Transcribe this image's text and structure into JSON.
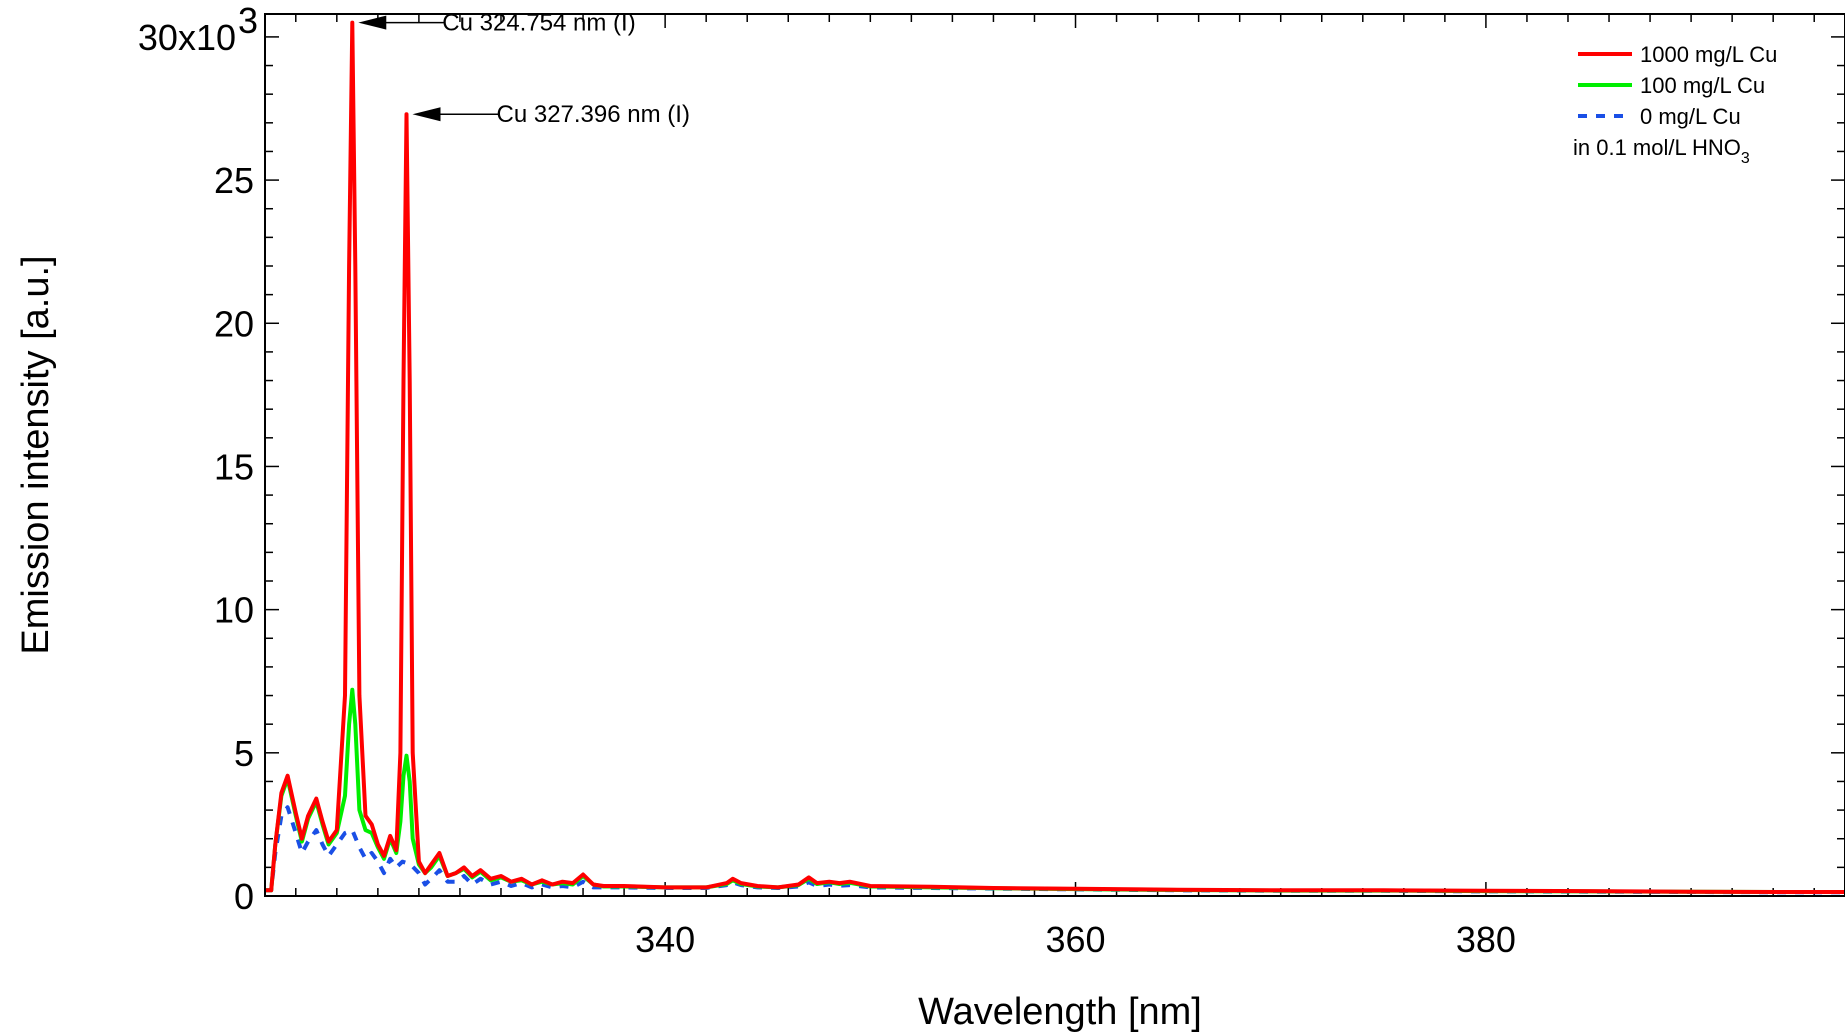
{
  "chart_data": {
    "type": "line",
    "xlabel": "Wavelength [nm]",
    "ylabel": "Emission intensity [a.u.]",
    "xlim": [
      320.5,
      397.5
    ],
    "ylim": [
      0,
      30.8
    ],
    "x_ticks": [
      340,
      360,
      380
    ],
    "x_tick_labels": [
      "340",
      "360",
      "380"
    ],
    "y_ticks": [
      0,
      5,
      10,
      15,
      20,
      25,
      30
    ],
    "y_tick_labels": [
      "0",
      "5",
      "10",
      "15",
      "20",
      "25",
      "30x10"
    ],
    "y_top_exponent": "3",
    "grid": false,
    "legend_position": "top-right",
    "legend_note": {
      "prefix": "in 0.1 mol/L HNO",
      "subscript": "3"
    },
    "annotations": [
      {
        "text": "Cu 324.754 nm (I)",
        "x": 324.754,
        "y": 30.5
      },
      {
        "text": "Cu 327.396 nm (I)",
        "x": 327.396,
        "y": 27.3
      }
    ],
    "series": [
      {
        "name": "1000 mg/L Cu",
        "color": "#ff0000",
        "style": "solid",
        "points": [
          [
            320.5,
            0.2
          ],
          [
            320.8,
            0.2
          ],
          [
            321.0,
            1.8
          ],
          [
            321.3,
            3.6
          ],
          [
            321.6,
            4.2
          ],
          [
            322.0,
            2.9
          ],
          [
            322.3,
            2.0
          ],
          [
            322.6,
            2.8
          ],
          [
            323.0,
            3.4
          ],
          [
            323.3,
            2.6
          ],
          [
            323.6,
            1.9
          ],
          [
            324.0,
            2.3
          ],
          [
            324.4,
            7.0
          ],
          [
            324.6,
            22.0
          ],
          [
            324.754,
            30.5
          ],
          [
            324.9,
            22.0
          ],
          [
            325.1,
            7.0
          ],
          [
            325.4,
            2.8
          ],
          [
            325.7,
            2.5
          ],
          [
            326.0,
            1.8
          ],
          [
            326.3,
            1.4
          ],
          [
            326.6,
            2.1
          ],
          [
            326.9,
            1.6
          ],
          [
            327.1,
            5.0
          ],
          [
            327.25,
            18.0
          ],
          [
            327.396,
            27.3
          ],
          [
            327.55,
            18.0
          ],
          [
            327.7,
            5.0
          ],
          [
            328.0,
            1.2
          ],
          [
            328.3,
            0.8
          ],
          [
            328.6,
            1.1
          ],
          [
            329.0,
            1.5
          ],
          [
            329.4,
            0.7
          ],
          [
            329.8,
            0.8
          ],
          [
            330.2,
            1.0
          ],
          [
            330.6,
            0.7
          ],
          [
            331.0,
            0.9
          ],
          [
            331.5,
            0.6
          ],
          [
            332.0,
            0.7
          ],
          [
            332.5,
            0.5
          ],
          [
            333.0,
            0.6
          ],
          [
            333.5,
            0.4
          ],
          [
            334.0,
            0.55
          ],
          [
            334.5,
            0.4
          ],
          [
            335.0,
            0.5
          ],
          [
            335.5,
            0.45
          ],
          [
            336.0,
            0.75
          ],
          [
            336.5,
            0.4
          ],
          [
            337.0,
            0.35
          ],
          [
            338.0,
            0.35
          ],
          [
            340.0,
            0.3
          ],
          [
            342.0,
            0.3
          ],
          [
            343.0,
            0.45
          ],
          [
            343.3,
            0.6
          ],
          [
            343.7,
            0.45
          ],
          [
            344.5,
            0.35
          ],
          [
            345.5,
            0.3
          ],
          [
            346.5,
            0.4
          ],
          [
            347.0,
            0.65
          ],
          [
            347.4,
            0.45
          ],
          [
            348.0,
            0.5
          ],
          [
            348.5,
            0.45
          ],
          [
            349.0,
            0.5
          ],
          [
            350.0,
            0.35
          ],
          [
            353.0,
            0.32
          ],
          [
            356.0,
            0.28
          ],
          [
            360.0,
            0.25
          ],
          [
            365.0,
            0.22
          ],
          [
            370.0,
            0.2
          ],
          [
            375.0,
            0.2
          ],
          [
            380.0,
            0.18
          ],
          [
            385.0,
            0.17
          ],
          [
            390.0,
            0.15
          ],
          [
            395.0,
            0.14
          ],
          [
            397.5,
            0.14
          ]
        ]
      },
      {
        "name": "100 mg/L Cu",
        "color": "#00ee00",
        "style": "solid",
        "points": [
          [
            320.5,
            0.2
          ],
          [
            320.8,
            0.2
          ],
          [
            321.0,
            1.8
          ],
          [
            321.3,
            3.5
          ],
          [
            321.6,
            4.1
          ],
          [
            322.0,
            2.8
          ],
          [
            322.3,
            1.9
          ],
          [
            322.6,
            2.7
          ],
          [
            323.0,
            3.3
          ],
          [
            323.3,
            2.5
          ],
          [
            323.6,
            1.8
          ],
          [
            324.0,
            2.2
          ],
          [
            324.4,
            3.5
          ],
          [
            324.6,
            6.0
          ],
          [
            324.754,
            7.2
          ],
          [
            324.9,
            6.0
          ],
          [
            325.1,
            3.0
          ],
          [
            325.4,
            2.3
          ],
          [
            325.7,
            2.2
          ],
          [
            326.0,
            1.7
          ],
          [
            326.3,
            1.3
          ],
          [
            326.6,
            2.0
          ],
          [
            326.9,
            1.5
          ],
          [
            327.1,
            2.6
          ],
          [
            327.25,
            4.2
          ],
          [
            327.396,
            4.9
          ],
          [
            327.55,
            4.0
          ],
          [
            327.7,
            2.0
          ],
          [
            328.0,
            1.1
          ],
          [
            328.3,
            0.8
          ],
          [
            328.6,
            1.0
          ],
          [
            329.0,
            1.4
          ],
          [
            329.4,
            0.7
          ],
          [
            329.8,
            0.8
          ],
          [
            330.2,
            0.95
          ],
          [
            330.6,
            0.65
          ],
          [
            331.0,
            0.85
          ],
          [
            331.5,
            0.55
          ],
          [
            332.0,
            0.65
          ],
          [
            332.5,
            0.5
          ],
          [
            333.0,
            0.55
          ],
          [
            333.5,
            0.4
          ],
          [
            334.0,
            0.5
          ],
          [
            334.5,
            0.4
          ],
          [
            335.0,
            0.45
          ],
          [
            335.5,
            0.4
          ],
          [
            336.0,
            0.7
          ],
          [
            336.5,
            0.4
          ],
          [
            337.0,
            0.33
          ],
          [
            338.0,
            0.33
          ],
          [
            340.0,
            0.3
          ],
          [
            342.0,
            0.3
          ],
          [
            343.0,
            0.42
          ],
          [
            343.3,
            0.55
          ],
          [
            343.7,
            0.42
          ],
          [
            344.5,
            0.33
          ],
          [
            345.5,
            0.3
          ],
          [
            346.5,
            0.38
          ],
          [
            347.0,
            0.6
          ],
          [
            347.4,
            0.42
          ],
          [
            348.0,
            0.48
          ],
          [
            348.5,
            0.42
          ],
          [
            349.0,
            0.46
          ],
          [
            350.0,
            0.33
          ],
          [
            353.0,
            0.3
          ],
          [
            356.0,
            0.27
          ],
          [
            360.0,
            0.24
          ],
          [
            365.0,
            0.21
          ],
          [
            370.0,
            0.19
          ],
          [
            375.0,
            0.19
          ],
          [
            380.0,
            0.17
          ],
          [
            385.0,
            0.16
          ],
          [
            390.0,
            0.15
          ],
          [
            395.0,
            0.14
          ],
          [
            397.5,
            0.14
          ]
        ]
      },
      {
        "name": "0 mg/L Cu",
        "color": "#1a4fe6",
        "style": "dashed",
        "points": [
          [
            320.5,
            0.2
          ],
          [
            320.8,
            0.2
          ],
          [
            321.0,
            1.5
          ],
          [
            321.3,
            2.8
          ],
          [
            321.6,
            3.1
          ],
          [
            322.0,
            2.2
          ],
          [
            322.3,
            1.5
          ],
          [
            322.6,
            1.9
          ],
          [
            323.0,
            2.3
          ],
          [
            323.3,
            1.8
          ],
          [
            323.6,
            1.4
          ],
          [
            324.0,
            1.8
          ],
          [
            324.4,
            2.2
          ],
          [
            324.754,
            2.3
          ],
          [
            325.1,
            1.7
          ],
          [
            325.4,
            1.3
          ],
          [
            325.7,
            1.5
          ],
          [
            326.0,
            1.2
          ],
          [
            326.3,
            0.8
          ],
          [
            326.6,
            1.3
          ],
          [
            326.9,
            1.0
          ],
          [
            327.2,
            1.2
          ],
          [
            327.6,
            1.1
          ],
          [
            328.0,
            0.8
          ],
          [
            328.3,
            0.4
          ],
          [
            328.6,
            0.6
          ],
          [
            329.0,
            0.9
          ],
          [
            329.4,
            0.5
          ],
          [
            329.8,
            0.5
          ],
          [
            330.2,
            0.7
          ],
          [
            330.6,
            0.4
          ],
          [
            331.0,
            0.6
          ],
          [
            331.5,
            0.4
          ],
          [
            332.0,
            0.5
          ],
          [
            332.5,
            0.35
          ],
          [
            333.0,
            0.45
          ],
          [
            333.5,
            0.3
          ],
          [
            334.0,
            0.4
          ],
          [
            334.5,
            0.3
          ],
          [
            335.0,
            0.35
          ],
          [
            335.5,
            0.3
          ],
          [
            336.0,
            0.5
          ],
          [
            336.5,
            0.3
          ],
          [
            337.0,
            0.3
          ],
          [
            338.0,
            0.3
          ],
          [
            340.0,
            0.28
          ],
          [
            342.0,
            0.28
          ],
          [
            343.0,
            0.38
          ],
          [
            343.3,
            0.48
          ],
          [
            343.7,
            0.38
          ],
          [
            344.5,
            0.3
          ],
          [
            345.5,
            0.28
          ],
          [
            346.5,
            0.33
          ],
          [
            347.0,
            0.48
          ],
          [
            347.4,
            0.35
          ],
          [
            348.0,
            0.4
          ],
          [
            348.5,
            0.36
          ],
          [
            349.0,
            0.38
          ],
          [
            350.0,
            0.3
          ],
          [
            353.0,
            0.28
          ],
          [
            356.0,
            0.26
          ],
          [
            360.0,
            0.23
          ],
          [
            365.0,
            0.2
          ],
          [
            370.0,
            0.18
          ],
          [
            375.0,
            0.18
          ],
          [
            380.0,
            0.16
          ],
          [
            385.0,
            0.15
          ],
          [
            390.0,
            0.14
          ],
          [
            395.0,
            0.13
          ],
          [
            397.5,
            0.13
          ]
        ]
      }
    ]
  }
}
